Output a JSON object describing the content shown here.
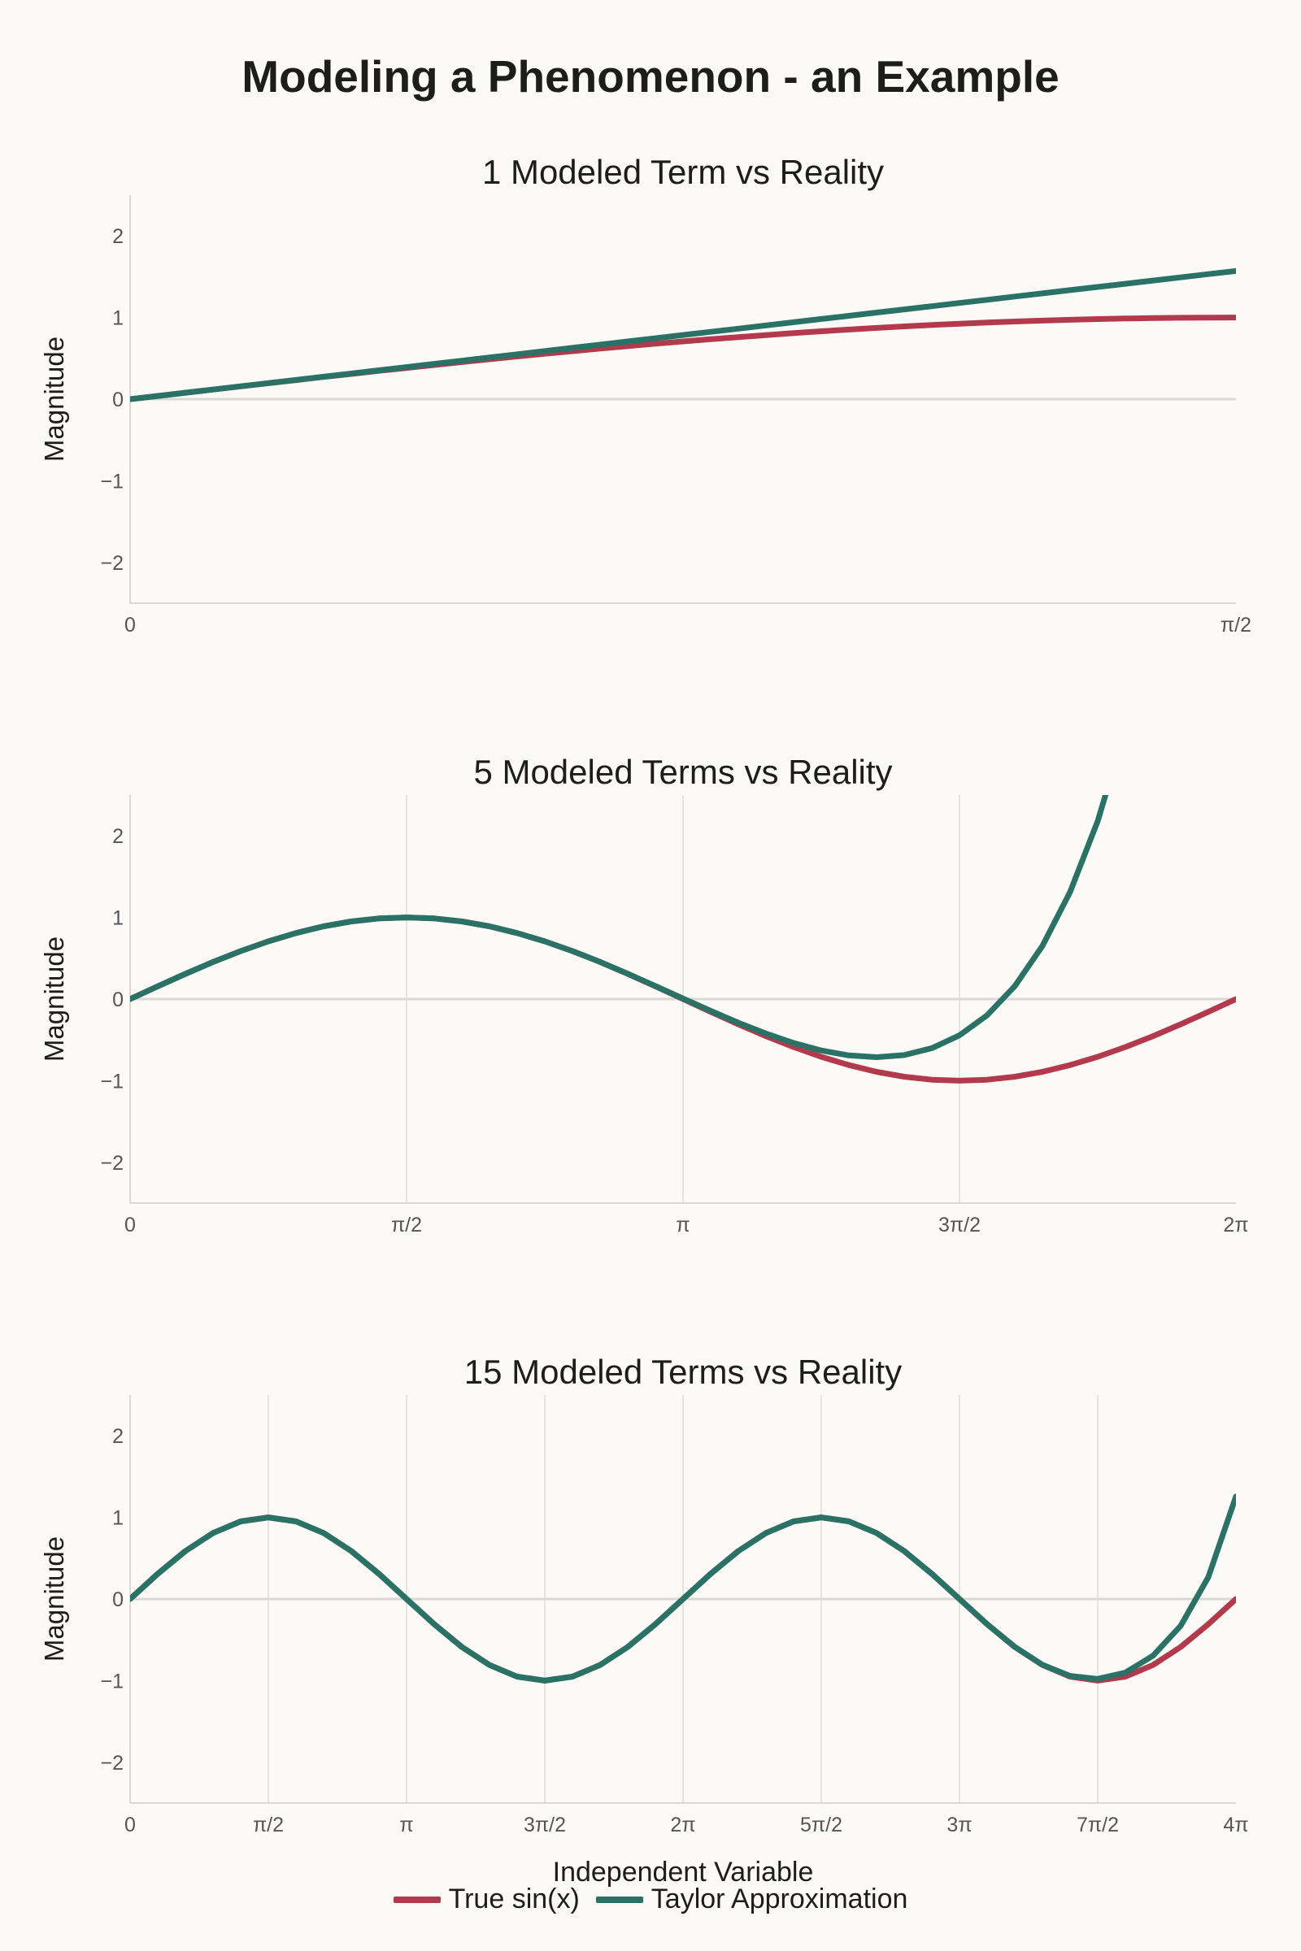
{
  "title": "Modeling a Phenomenon - an Example",
  "xlabel": "Independent Variable",
  "colors": {
    "true_sin": "#b23a4c",
    "taylor": "#2a7265",
    "background": "#fbfaf6",
    "grid": "#dcdcd8",
    "axis": "#cfcfca",
    "zero_line": "#d8d8d4",
    "tick_text": "#555555"
  },
  "legend": [
    {
      "label": "True sin(x)",
      "color": "#b23a4c"
    },
    {
      "label": "Taylor Approximation",
      "color": "#2a7265"
    }
  ],
  "chart_data": [
    {
      "type": "line",
      "title": "1 Modeled Term vs Reality",
      "ylabel": "Magnitude",
      "terms": 1,
      "xlim": [
        0,
        1.5708
      ],
      "ylim": [
        -2.5,
        2.5
      ],
      "xticks": [
        0,
        1.5708
      ],
      "xtick_labels": [
        "0",
        "π/2"
      ],
      "yticks": [
        -2,
        -1,
        0,
        1,
        2
      ],
      "ytick_labels": [
        "−2",
        "−1",
        "0",
        "1",
        "2"
      ],
      "vertical_grid": false,
      "series": [
        {
          "name": "True sin(x)",
          "function": "sin"
        },
        {
          "name": "Taylor Approximation",
          "function": "taylor_sin",
          "terms": 1
        }
      ]
    },
    {
      "type": "line",
      "title": "5 Modeled Terms vs Reality",
      "ylabel": "Magnitude",
      "terms": 5,
      "xlim": [
        0,
        6.2832
      ],
      "ylim": [
        -2.5,
        2.5
      ],
      "xticks": [
        0,
        1.5708,
        3.1416,
        4.7124,
        6.2832
      ],
      "xtick_labels": [
        "0",
        "π/2",
        "π",
        "3π/2",
        "2π"
      ],
      "yticks": [
        -2,
        -1,
        0,
        1,
        2
      ],
      "ytick_labels": [
        "−2",
        "−1",
        "0",
        "1",
        "2"
      ],
      "vertical_grid": true,
      "series": [
        {
          "name": "True sin(x)",
          "function": "sin"
        },
        {
          "name": "Taylor Approximation",
          "function": "taylor_sin",
          "terms": 5
        }
      ]
    },
    {
      "type": "line",
      "title": "15 Modeled Terms vs Reality",
      "ylabel": "Magnitude",
      "terms": 15,
      "xlim": [
        0,
        12.5664
      ],
      "ylim": [
        -2.5,
        2.5
      ],
      "xticks": [
        0,
        1.5708,
        3.1416,
        4.7124,
        6.2832,
        7.854,
        9.4248,
        10.9956,
        12.5664
      ],
      "xtick_labels": [
        "0",
        "π/2",
        "π",
        "3π/2",
        "2π",
        "5π/2",
        "3π",
        "7π/2",
        "4π"
      ],
      "yticks": [
        -2,
        -1,
        0,
        1,
        2
      ],
      "ytick_labels": [
        "−2",
        "−1",
        "0",
        "1",
        "2"
      ],
      "vertical_grid": true,
      "series": [
        {
          "name": "True sin(x)",
          "function": "sin"
        },
        {
          "name": "Taylor Approximation",
          "function": "taylor_sin",
          "terms": 15
        }
      ]
    }
  ]
}
